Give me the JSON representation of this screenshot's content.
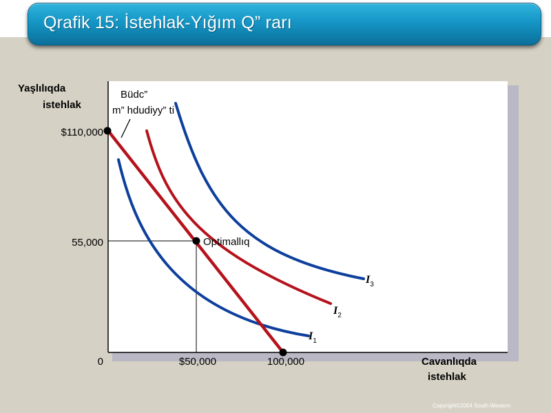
{
  "slide": {
    "title": "Qrafik 15: İstehlak-Yığım Q” rarı",
    "copyright": "Copyright©2004  South-Western"
  },
  "diagram": {
    "y_axis_label_line1": "Yaşlılıqda",
    "y_axis_label_line2": "istehlak",
    "x_axis_label_line1": "Cavanlıqda",
    "x_axis_label_line2": "istehlak",
    "origin_label": "0",
    "y_tick_top": "$110,000",
    "y_tick_mid": "55,000",
    "x_tick_mid": "$50,000",
    "x_tick_right": "100,000",
    "budget_label_line1": "Büdc”",
    "budget_label_line2": "m” hdudiyy” ti",
    "optimum_label": "Optimallıq",
    "curve_labels": [
      {
        "letter": "I",
        "sub": "1"
      },
      {
        "letter": "I",
        "sub": "2"
      },
      {
        "letter": "I",
        "sub": "3"
      }
    ],
    "colors": {
      "budget_line": "#b5121b",
      "indifference_blue": "#0d3f9c",
      "indifference_red": "#b5121b",
      "banner": "#1596c6"
    }
  }
}
